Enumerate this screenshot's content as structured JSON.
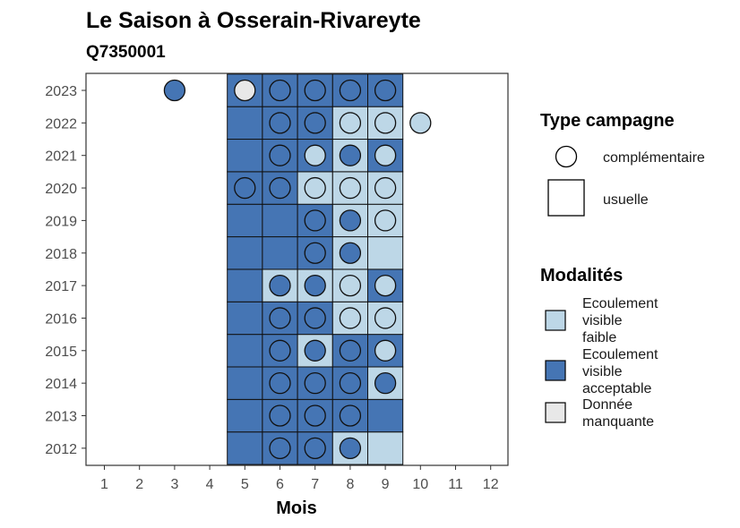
{
  "chart_data": {
    "type": "heatmap",
    "title": "Le Saison à Osserain-Rivareyte",
    "subtitle": "Q7350001",
    "xlabel": "Mois",
    "ylabel": "",
    "x_ticks": [
      "1",
      "2",
      "3",
      "4",
      "5",
      "6",
      "7",
      "8",
      "9",
      "10",
      "11",
      "12"
    ],
    "y_ticks": [
      "2012",
      "2013",
      "2014",
      "2015",
      "2016",
      "2017",
      "2018",
      "2019",
      "2020",
      "2021",
      "2022",
      "2023"
    ],
    "colors": {
      "faible": "#bdd7e7",
      "acceptable": "#4575b4",
      "manquante": "#e8e8e8"
    },
    "legend_shape": {
      "title": "Type campagne",
      "entries": [
        "complémentaire",
        "usuelle"
      ]
    },
    "legend_fill": {
      "title": "Modalités",
      "entries": [
        {
          "key": "faible",
          "lines": [
            "Ecoulement",
            "visible",
            "faible"
          ]
        },
        {
          "key": "acceptable",
          "lines": [
            "Ecoulement",
            "visible",
            "acceptable"
          ]
        },
        {
          "key": "manquante",
          "lines": [
            "Donnée",
            "manquante"
          ]
        }
      ]
    },
    "usuelle": [
      {
        "year": 2012,
        "month": 5,
        "modalite": "acceptable"
      },
      {
        "year": 2012,
        "month": 6,
        "modalite": "acceptable"
      },
      {
        "year": 2012,
        "month": 7,
        "modalite": "acceptable"
      },
      {
        "year": 2012,
        "month": 8,
        "modalite": "faible"
      },
      {
        "year": 2012,
        "month": 9,
        "modalite": "faible"
      },
      {
        "year": 2013,
        "month": 5,
        "modalite": "acceptable"
      },
      {
        "year": 2013,
        "month": 6,
        "modalite": "acceptable"
      },
      {
        "year": 2013,
        "month": 7,
        "modalite": "acceptable"
      },
      {
        "year": 2013,
        "month": 8,
        "modalite": "acceptable"
      },
      {
        "year": 2013,
        "month": 9,
        "modalite": "acceptable"
      },
      {
        "year": 2014,
        "month": 5,
        "modalite": "acceptable"
      },
      {
        "year": 2014,
        "month": 6,
        "modalite": "acceptable"
      },
      {
        "year": 2014,
        "month": 7,
        "modalite": "acceptable"
      },
      {
        "year": 2014,
        "month": 8,
        "modalite": "acceptable"
      },
      {
        "year": 2014,
        "month": 9,
        "modalite": "faible"
      },
      {
        "year": 2015,
        "month": 5,
        "modalite": "acceptable"
      },
      {
        "year": 2015,
        "month": 6,
        "modalite": "acceptable"
      },
      {
        "year": 2015,
        "month": 7,
        "modalite": "faible"
      },
      {
        "year": 2015,
        "month": 8,
        "modalite": "acceptable"
      },
      {
        "year": 2015,
        "month": 9,
        "modalite": "acceptable"
      },
      {
        "year": 2016,
        "month": 5,
        "modalite": "acceptable"
      },
      {
        "year": 2016,
        "month": 6,
        "modalite": "acceptable"
      },
      {
        "year": 2016,
        "month": 7,
        "modalite": "acceptable"
      },
      {
        "year": 2016,
        "month": 8,
        "modalite": "faible"
      },
      {
        "year": 2016,
        "month": 9,
        "modalite": "faible"
      },
      {
        "year": 2017,
        "month": 5,
        "modalite": "acceptable"
      },
      {
        "year": 2017,
        "month": 6,
        "modalite": "faible"
      },
      {
        "year": 2017,
        "month": 7,
        "modalite": "faible"
      },
      {
        "year": 2017,
        "month": 8,
        "modalite": "faible"
      },
      {
        "year": 2017,
        "month": 9,
        "modalite": "acceptable"
      },
      {
        "year": 2018,
        "month": 5,
        "modalite": "acceptable"
      },
      {
        "year": 2018,
        "month": 6,
        "modalite": "acceptable"
      },
      {
        "year": 2018,
        "month": 7,
        "modalite": "acceptable"
      },
      {
        "year": 2018,
        "month": 8,
        "modalite": "faible"
      },
      {
        "year": 2018,
        "month": 9,
        "modalite": "faible"
      },
      {
        "year": 2019,
        "month": 5,
        "modalite": "acceptable"
      },
      {
        "year": 2019,
        "month": 6,
        "modalite": "acceptable"
      },
      {
        "year": 2019,
        "month": 7,
        "modalite": "acceptable"
      },
      {
        "year": 2019,
        "month": 8,
        "modalite": "faible"
      },
      {
        "year": 2019,
        "month": 9,
        "modalite": "faible"
      },
      {
        "year": 2020,
        "month": 5,
        "modalite": "acceptable"
      },
      {
        "year": 2020,
        "month": 6,
        "modalite": "acceptable"
      },
      {
        "year": 2020,
        "month": 7,
        "modalite": "faible"
      },
      {
        "year": 2020,
        "month": 8,
        "modalite": "faible"
      },
      {
        "year": 2020,
        "month": 9,
        "modalite": "faible"
      },
      {
        "year": 2021,
        "month": 5,
        "modalite": "acceptable"
      },
      {
        "year": 2021,
        "month": 6,
        "modalite": "acceptable"
      },
      {
        "year": 2021,
        "month": 7,
        "modalite": "acceptable"
      },
      {
        "year": 2021,
        "month": 8,
        "modalite": "faible"
      },
      {
        "year": 2021,
        "month": 9,
        "modalite": "acceptable"
      },
      {
        "year": 2022,
        "month": 5,
        "modalite": "acceptable"
      },
      {
        "year": 2022,
        "month": 6,
        "modalite": "acceptable"
      },
      {
        "year": 2022,
        "month": 7,
        "modalite": "acceptable"
      },
      {
        "year": 2022,
        "month": 8,
        "modalite": "faible"
      },
      {
        "year": 2022,
        "month": 9,
        "modalite": "faible"
      },
      {
        "year": 2023,
        "month": 5,
        "modalite": "acceptable"
      },
      {
        "year": 2023,
        "month": 6,
        "modalite": "acceptable"
      },
      {
        "year": 2023,
        "month": 7,
        "modalite": "acceptable"
      },
      {
        "year": 2023,
        "month": 8,
        "modalite": "acceptable"
      },
      {
        "year": 2023,
        "month": 9,
        "modalite": "acceptable"
      }
    ],
    "complementaire": [
      {
        "year": 2012,
        "month": 6,
        "modalite": "acceptable"
      },
      {
        "year": 2012,
        "month": 7,
        "modalite": "acceptable"
      },
      {
        "year": 2012,
        "month": 8,
        "modalite": "acceptable"
      },
      {
        "year": 2013,
        "month": 6,
        "modalite": "acceptable"
      },
      {
        "year": 2013,
        "month": 7,
        "modalite": "acceptable"
      },
      {
        "year": 2013,
        "month": 8,
        "modalite": "acceptable"
      },
      {
        "year": 2014,
        "month": 6,
        "modalite": "acceptable"
      },
      {
        "year": 2014,
        "month": 7,
        "modalite": "acceptable"
      },
      {
        "year": 2014,
        "month": 8,
        "modalite": "acceptable"
      },
      {
        "year": 2014,
        "month": 9,
        "modalite": "acceptable"
      },
      {
        "year": 2015,
        "month": 6,
        "modalite": "acceptable"
      },
      {
        "year": 2015,
        "month": 7,
        "modalite": "acceptable"
      },
      {
        "year": 2015,
        "month": 8,
        "modalite": "acceptable"
      },
      {
        "year": 2015,
        "month": 9,
        "modalite": "faible"
      },
      {
        "year": 2016,
        "month": 6,
        "modalite": "acceptable"
      },
      {
        "year": 2016,
        "month": 7,
        "modalite": "acceptable"
      },
      {
        "year": 2016,
        "month": 8,
        "modalite": "faible"
      },
      {
        "year": 2016,
        "month": 9,
        "modalite": "faible"
      },
      {
        "year": 2017,
        "month": 6,
        "modalite": "acceptable"
      },
      {
        "year": 2017,
        "month": 7,
        "modalite": "acceptable"
      },
      {
        "year": 2017,
        "month": 8,
        "modalite": "faible"
      },
      {
        "year": 2017,
        "month": 9,
        "modalite": "faible"
      },
      {
        "year": 2018,
        "month": 7,
        "modalite": "acceptable"
      },
      {
        "year": 2018,
        "month": 8,
        "modalite": "acceptable"
      },
      {
        "year": 2019,
        "month": 7,
        "modalite": "acceptable"
      },
      {
        "year": 2019,
        "month": 8,
        "modalite": "acceptable"
      },
      {
        "year": 2019,
        "month": 9,
        "modalite": "faible"
      },
      {
        "year": 2020,
        "month": 5,
        "modalite": "acceptable"
      },
      {
        "year": 2020,
        "month": 6,
        "modalite": "acceptable"
      },
      {
        "year": 2020,
        "month": 7,
        "modalite": "faible"
      },
      {
        "year": 2020,
        "month": 8,
        "modalite": "faible"
      },
      {
        "year": 2020,
        "month": 9,
        "modalite": "faible"
      },
      {
        "year": 2021,
        "month": 6,
        "modalite": "acceptable"
      },
      {
        "year": 2021,
        "month": 7,
        "modalite": "faible"
      },
      {
        "year": 2021,
        "month": 8,
        "modalite": "acceptable"
      },
      {
        "year": 2021,
        "month": 9,
        "modalite": "faible"
      },
      {
        "year": 2022,
        "month": 6,
        "modalite": "acceptable"
      },
      {
        "year": 2022,
        "month": 7,
        "modalite": "acceptable"
      },
      {
        "year": 2022,
        "month": 8,
        "modalite": "faible"
      },
      {
        "year": 2022,
        "month": 9,
        "modalite": "faible"
      },
      {
        "year": 2022,
        "month": 10,
        "modalite": "faible"
      },
      {
        "year": 2023,
        "month": 3,
        "modalite": "acceptable"
      },
      {
        "year": 2023,
        "month": 5,
        "modalite": "manquante"
      },
      {
        "year": 2023,
        "month": 6,
        "modalite": "acceptable"
      },
      {
        "year": 2023,
        "month": 7,
        "modalite": "acceptable"
      },
      {
        "year": 2023,
        "month": 8,
        "modalite": "acceptable"
      },
      {
        "year": 2023,
        "month": 9,
        "modalite": "acceptable"
      }
    ]
  }
}
